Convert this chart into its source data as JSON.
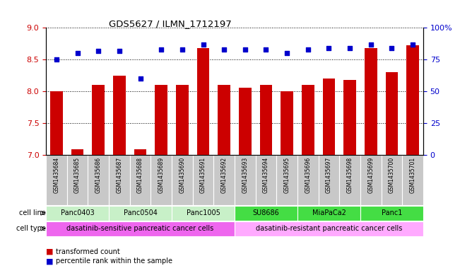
{
  "title": "GDS5627 / ILMN_1712197",
  "samples": [
    "GSM1435684",
    "GSM1435685",
    "GSM1435686",
    "GSM1435687",
    "GSM1435688",
    "GSM1435689",
    "GSM1435690",
    "GSM1435691",
    "GSM1435692",
    "GSM1435693",
    "GSM1435694",
    "GSM1435695",
    "GSM1435696",
    "GSM1435697",
    "GSM1435698",
    "GSM1435699",
    "GSM1435700",
    "GSM1435701"
  ],
  "transformed_count": [
    8.0,
    7.08,
    8.1,
    8.25,
    7.08,
    8.1,
    8.1,
    8.68,
    8.1,
    8.05,
    8.1,
    8.0,
    8.1,
    8.2,
    8.18,
    8.68,
    8.3,
    8.72
  ],
  "percentile_rank": [
    75,
    80,
    82,
    82,
    60,
    83,
    83,
    87,
    83,
    83,
    83,
    80,
    83,
    84,
    84,
    87,
    84,
    87
  ],
  "cell_line_groups": [
    {
      "label": "Panc0403",
      "start": 0,
      "end": 2,
      "color": "#c8f0c8"
    },
    {
      "label": "Panc0504",
      "start": 3,
      "end": 5,
      "color": "#c8f0c8"
    },
    {
      "label": "Panc1005",
      "start": 6,
      "end": 8,
      "color": "#c8f0c8"
    },
    {
      "label": "SU8686",
      "start": 9,
      "end": 11,
      "color": "#44dd44"
    },
    {
      "label": "MiaPaCa2",
      "start": 12,
      "end": 14,
      "color": "#44dd44"
    },
    {
      "label": "Panc1",
      "start": 15,
      "end": 17,
      "color": "#44dd44"
    }
  ],
  "cell_type_groups": [
    {
      "label": "dasatinib-sensitive pancreatic cancer cells",
      "start": 0,
      "end": 8,
      "color": "#ee66ee"
    },
    {
      "label": "dasatinib-resistant pancreatic cancer cells",
      "start": 9,
      "end": 17,
      "color": "#ffaaff"
    }
  ],
  "ylim_left": [
    7.0,
    9.0
  ],
  "ylim_right": [
    0,
    100
  ],
  "yticks_left": [
    7.0,
    7.5,
    8.0,
    8.5,
    9.0
  ],
  "yticks_right": [
    0,
    25,
    50,
    75,
    100
  ],
  "bar_color": "#cc0000",
  "dot_color": "#0000cc",
  "bar_width": 0.6,
  "dot_size": 25,
  "sample_box_color": "#c8c8c8"
}
